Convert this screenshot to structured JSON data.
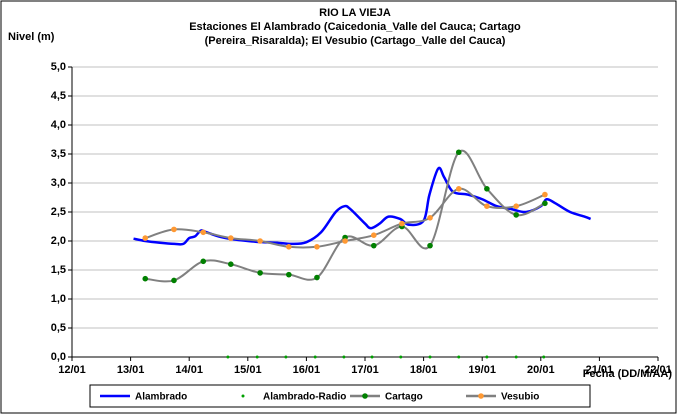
{
  "chart_data": {
    "type": "line",
    "title": [
      "RIO LA VIEJA",
      "Estaciones El Alambrado (Caicedonia_Valle del Cauca; Cartago",
      "(Pereira_Risaralda);  El Vesubio (Cartago_Valle del Cauca)"
    ],
    "y_label": "Nivel (m)",
    "x_label": "Fecha (DD/M/AA)",
    "xlim": [
      12,
      22
    ],
    "xticks": [
      {
        "value": 12,
        "label": "12/01"
      },
      {
        "value": 13,
        "label": "13/01"
      },
      {
        "value": 14,
        "label": "14/01"
      },
      {
        "value": 15,
        "label": "15/01"
      },
      {
        "value": 16,
        "label": "16/01"
      },
      {
        "value": 17,
        "label": "17/01"
      },
      {
        "value": 18,
        "label": "18/01"
      },
      {
        "value": 19,
        "label": "19/01"
      },
      {
        "value": 20,
        "label": "20/01"
      },
      {
        "value": 21,
        "label": "21/01"
      },
      {
        "value": 22,
        "label": "22/01"
      }
    ],
    "ylim": [
      0,
      5
    ],
    "yticks": [
      {
        "value": 0,
        "label": "0,0"
      },
      {
        "value": 0.5,
        "label": "0,5"
      },
      {
        "value": 1,
        "label": "1,0"
      },
      {
        "value": 1.5,
        "label": "1,5"
      },
      {
        "value": 2,
        "label": "2,0"
      },
      {
        "value": 2.5,
        "label": "2,5"
      },
      {
        "value": 3,
        "label": "3,0"
      },
      {
        "value": 3.5,
        "label": "3,5"
      },
      {
        "value": 4,
        "label": "4,0"
      },
      {
        "value": 4.5,
        "label": "4,5"
      },
      {
        "value": 5,
        "label": "5,0"
      }
    ],
    "grid": true,
    "legend": "bottom",
    "series": [
      {
        "name": "Alambrado",
        "color": "#0000ff",
        "line_color": "#0000ff",
        "marker": "none",
        "x": [
          13.05,
          13.25,
          13.5,
          13.75,
          13.9,
          14.0,
          14.1,
          14.2,
          14.3,
          14.5,
          14.75,
          15.0,
          15.25,
          15.5,
          15.75,
          16.0,
          16.25,
          16.5,
          16.65,
          16.75,
          17.0,
          17.1,
          17.25,
          17.4,
          17.6,
          17.75,
          18.0,
          18.1,
          18.25,
          18.35,
          18.5,
          18.75,
          19.0,
          19.25,
          19.5,
          19.75,
          20.0,
          20.1,
          20.25,
          20.5,
          20.75,
          20.85
        ],
        "values": [
          2.04,
          2.0,
          1.97,
          1.95,
          1.95,
          2.05,
          2.08,
          2.18,
          2.15,
          2.08,
          2.03,
          2.0,
          1.98,
          1.97,
          1.95,
          1.98,
          2.15,
          2.5,
          2.6,
          2.55,
          2.3,
          2.22,
          2.3,
          2.42,
          2.38,
          2.28,
          2.35,
          2.8,
          3.25,
          3.1,
          2.85,
          2.8,
          2.72,
          2.6,
          2.55,
          2.5,
          2.6,
          2.72,
          2.65,
          2.5,
          2.42,
          2.38
        ]
      },
      {
        "name": "Alambrado-Radio",
        "color": "#00a000",
        "line_color": "none",
        "marker": "dot",
        "x": [
          14.66,
          15.16,
          15.65,
          16.15,
          16.64,
          17.12,
          17.61,
          18.11,
          18.6,
          19.08,
          19.58,
          20.05
        ],
        "values": [
          0,
          0,
          0,
          0,
          0,
          0,
          0,
          0,
          0,
          0,
          0,
          0
        ]
      },
      {
        "name": "Cartago",
        "color": "#008000",
        "line_color": "#808080",
        "marker": "circle",
        "x": [
          13.25,
          13.74,
          14.24,
          14.71,
          15.21,
          15.7,
          16.18,
          16.66,
          17.15,
          17.63,
          18.11,
          18.6,
          19.08,
          19.58,
          20.07
        ],
        "values": [
          1.35,
          1.32,
          1.65,
          1.6,
          1.45,
          1.42,
          1.37,
          2.06,
          1.92,
          2.25,
          1.92,
          3.53,
          2.9,
          2.45,
          2.65
        ]
      },
      {
        "name": "Vesubio",
        "color": "#ff9933",
        "line_color": "#808080",
        "marker": "circle",
        "x": [
          13.25,
          13.74,
          14.24,
          14.71,
          15.21,
          15.7,
          16.18,
          16.66,
          17.15,
          17.63,
          18.11,
          18.6,
          19.08,
          19.58,
          20.07
        ],
        "values": [
          2.05,
          2.2,
          2.15,
          2.05,
          2.0,
          1.9,
          1.9,
          2.0,
          2.1,
          2.3,
          2.4,
          2.9,
          2.6,
          2.6,
          2.8
        ]
      }
    ]
  }
}
